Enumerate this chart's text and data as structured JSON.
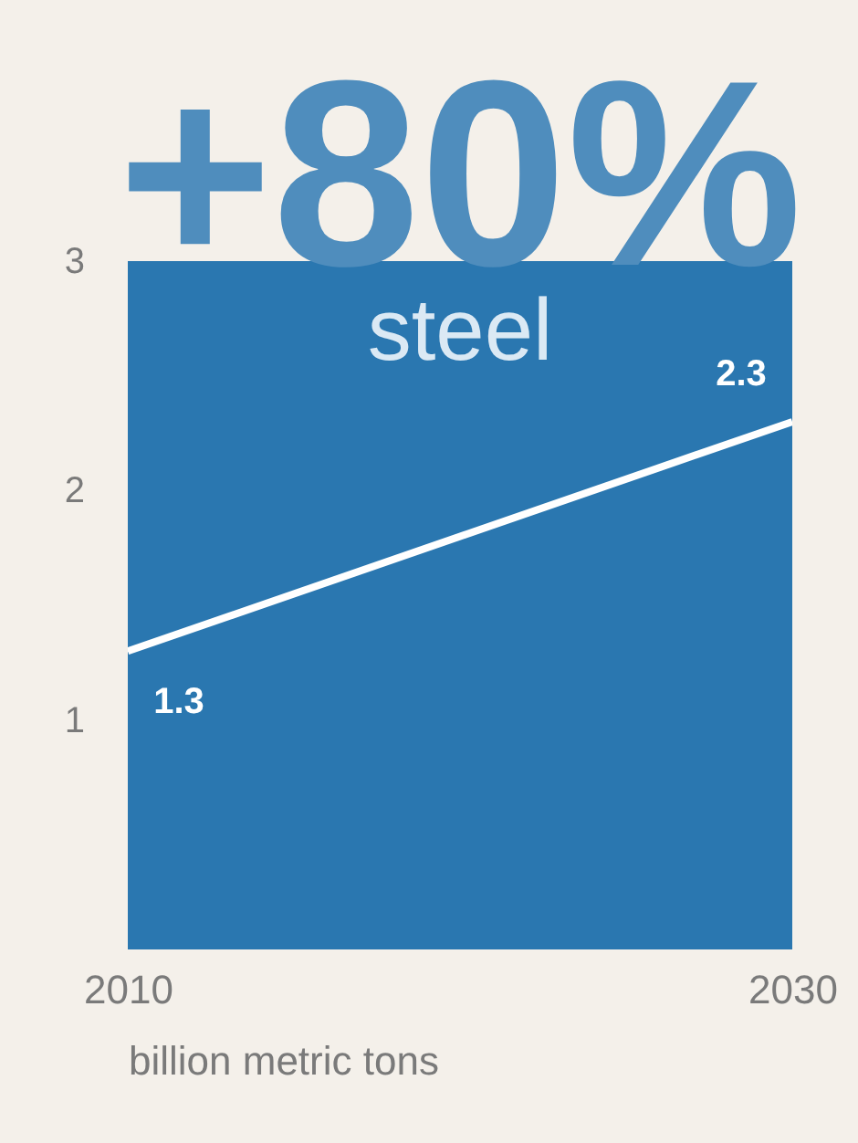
{
  "chart_data": {
    "type": "line",
    "title": "+80%",
    "xlabel": "billion metric tons",
    "annotations": [
      "steel"
    ],
    "x": [
      2010,
      2030
    ],
    "series": [
      {
        "color": "#ffffff",
        "values": [
          1.3,
          2.3
        ]
      }
    ],
    "xlim": [
      2010,
      2030
    ],
    "xticks": [
      2010,
      2030
    ],
    "ylim": [
      0,
      3
    ],
    "yticks": [
      1,
      2,
      3
    ],
    "data_labels": true,
    "line_style": "solid"
  }
}
